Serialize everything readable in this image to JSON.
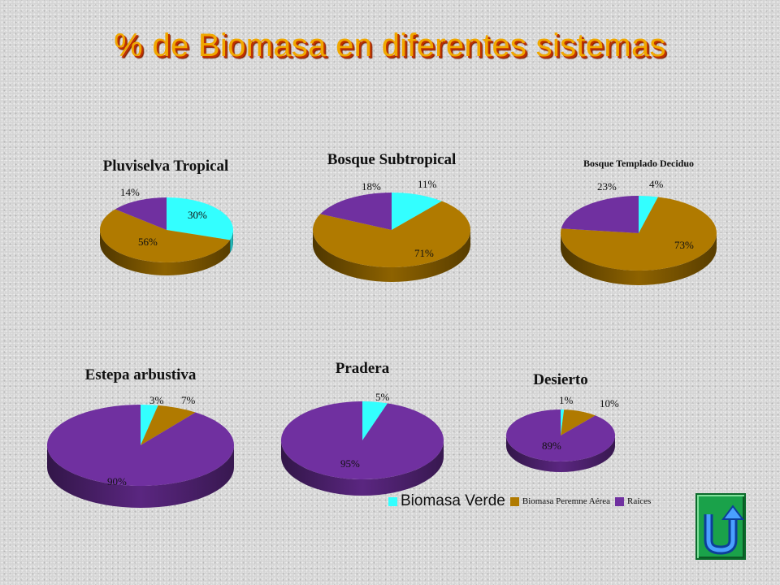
{
  "title": "% de Biomasa en diferentes sistemas",
  "colors": {
    "verde": "#33ffff",
    "perenne": "#b07a00",
    "raices": "#7030a0"
  },
  "legend": [
    {
      "label": "Biomasa Verde",
      "color": "#33ffff",
      "size": "big"
    },
    {
      "label": "Biomasa Peremne Aérea",
      "color": "#b07a00",
      "size": "small"
    },
    {
      "label": "Raíces",
      "color": "#7030a0",
      "size": "small"
    }
  ],
  "chart_data": [
    {
      "type": "pie",
      "title": "Pluviselva Tropical",
      "labels": [
        "Biomasa Verde",
        "Biomasa Peremne Aérea",
        "Raíces"
      ],
      "values": [
        30,
        56,
        14
      ],
      "value_labels": [
        "30%",
        "56%",
        "14%"
      ]
    },
    {
      "type": "pie",
      "title": "Bosque Subtropical",
      "labels": [
        "Biomasa Verde",
        "Biomasa Peremne Aérea",
        "Raíces"
      ],
      "values": [
        11,
        71,
        18
      ],
      "value_labels": [
        "11%",
        "71%",
        "18%"
      ]
    },
    {
      "type": "pie",
      "title": "Bosque Templado Deciduo",
      "labels": [
        "Biomasa Verde",
        "Biomasa Peremne Aérea",
        "Raíces"
      ],
      "values": [
        4,
        73,
        23
      ],
      "value_labels": [
        "4%",
        "73%",
        "23%"
      ]
    },
    {
      "type": "pie",
      "title": "Estepa arbustiva",
      "labels": [
        "Biomasa Verde",
        "Biomasa Peremne Aérea",
        "Raíces"
      ],
      "values": [
        3,
        7,
        90
      ],
      "value_labels": [
        "3%",
        "7%",
        "90%"
      ]
    },
    {
      "type": "pie",
      "title": "Pradera",
      "labels": [
        "Biomasa Verde",
        "Raíces"
      ],
      "values": [
        5,
        95
      ],
      "value_labels": [
        "5%",
        "95%"
      ]
    },
    {
      "type": "pie",
      "title": "Desierto",
      "labels": [
        "Biomasa Verde",
        "Biomasa Peremne Aérea",
        "Raíces"
      ],
      "values": [
        1,
        10,
        89
      ],
      "value_labels": [
        "1%",
        "10%",
        "89%"
      ]
    }
  ],
  "return_button": {
    "icon": "u-turn-arrow-icon"
  }
}
